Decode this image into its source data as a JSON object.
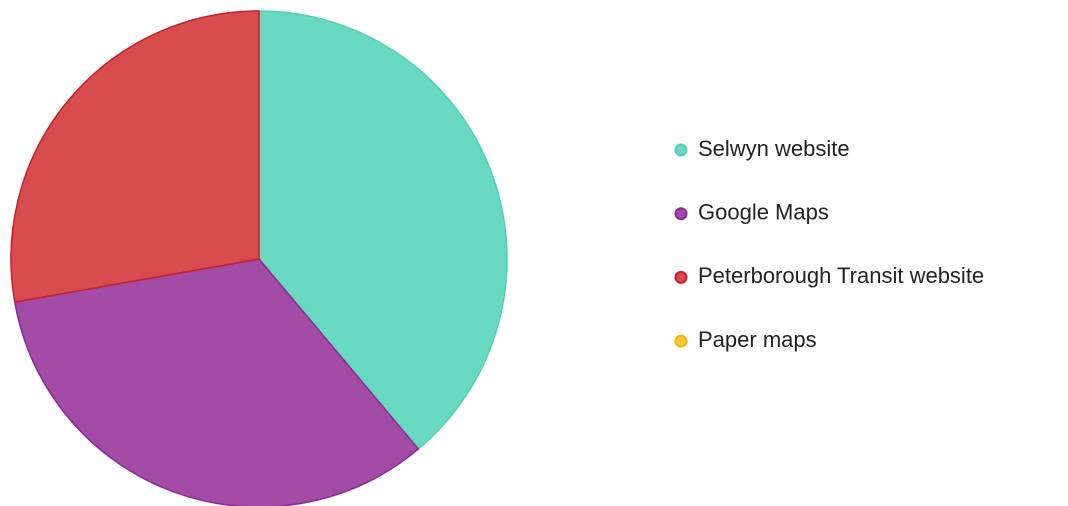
{
  "chart_data": {
    "type": "pie",
    "categories": [
      "Selwyn website",
      "Google Maps",
      "Peterborough Transit website",
      "Paper maps"
    ],
    "values": [
      7,
      6,
      5,
      0
    ],
    "colors": [
      "#68d8c0",
      "#a24ca6",
      "#d64c4f",
      "#f7c83e"
    ],
    "stroke_colors": [
      "#52d0b4",
      "#8a2a96",
      "#c81e2a",
      "#f2b800"
    ],
    "legend": "right"
  }
}
